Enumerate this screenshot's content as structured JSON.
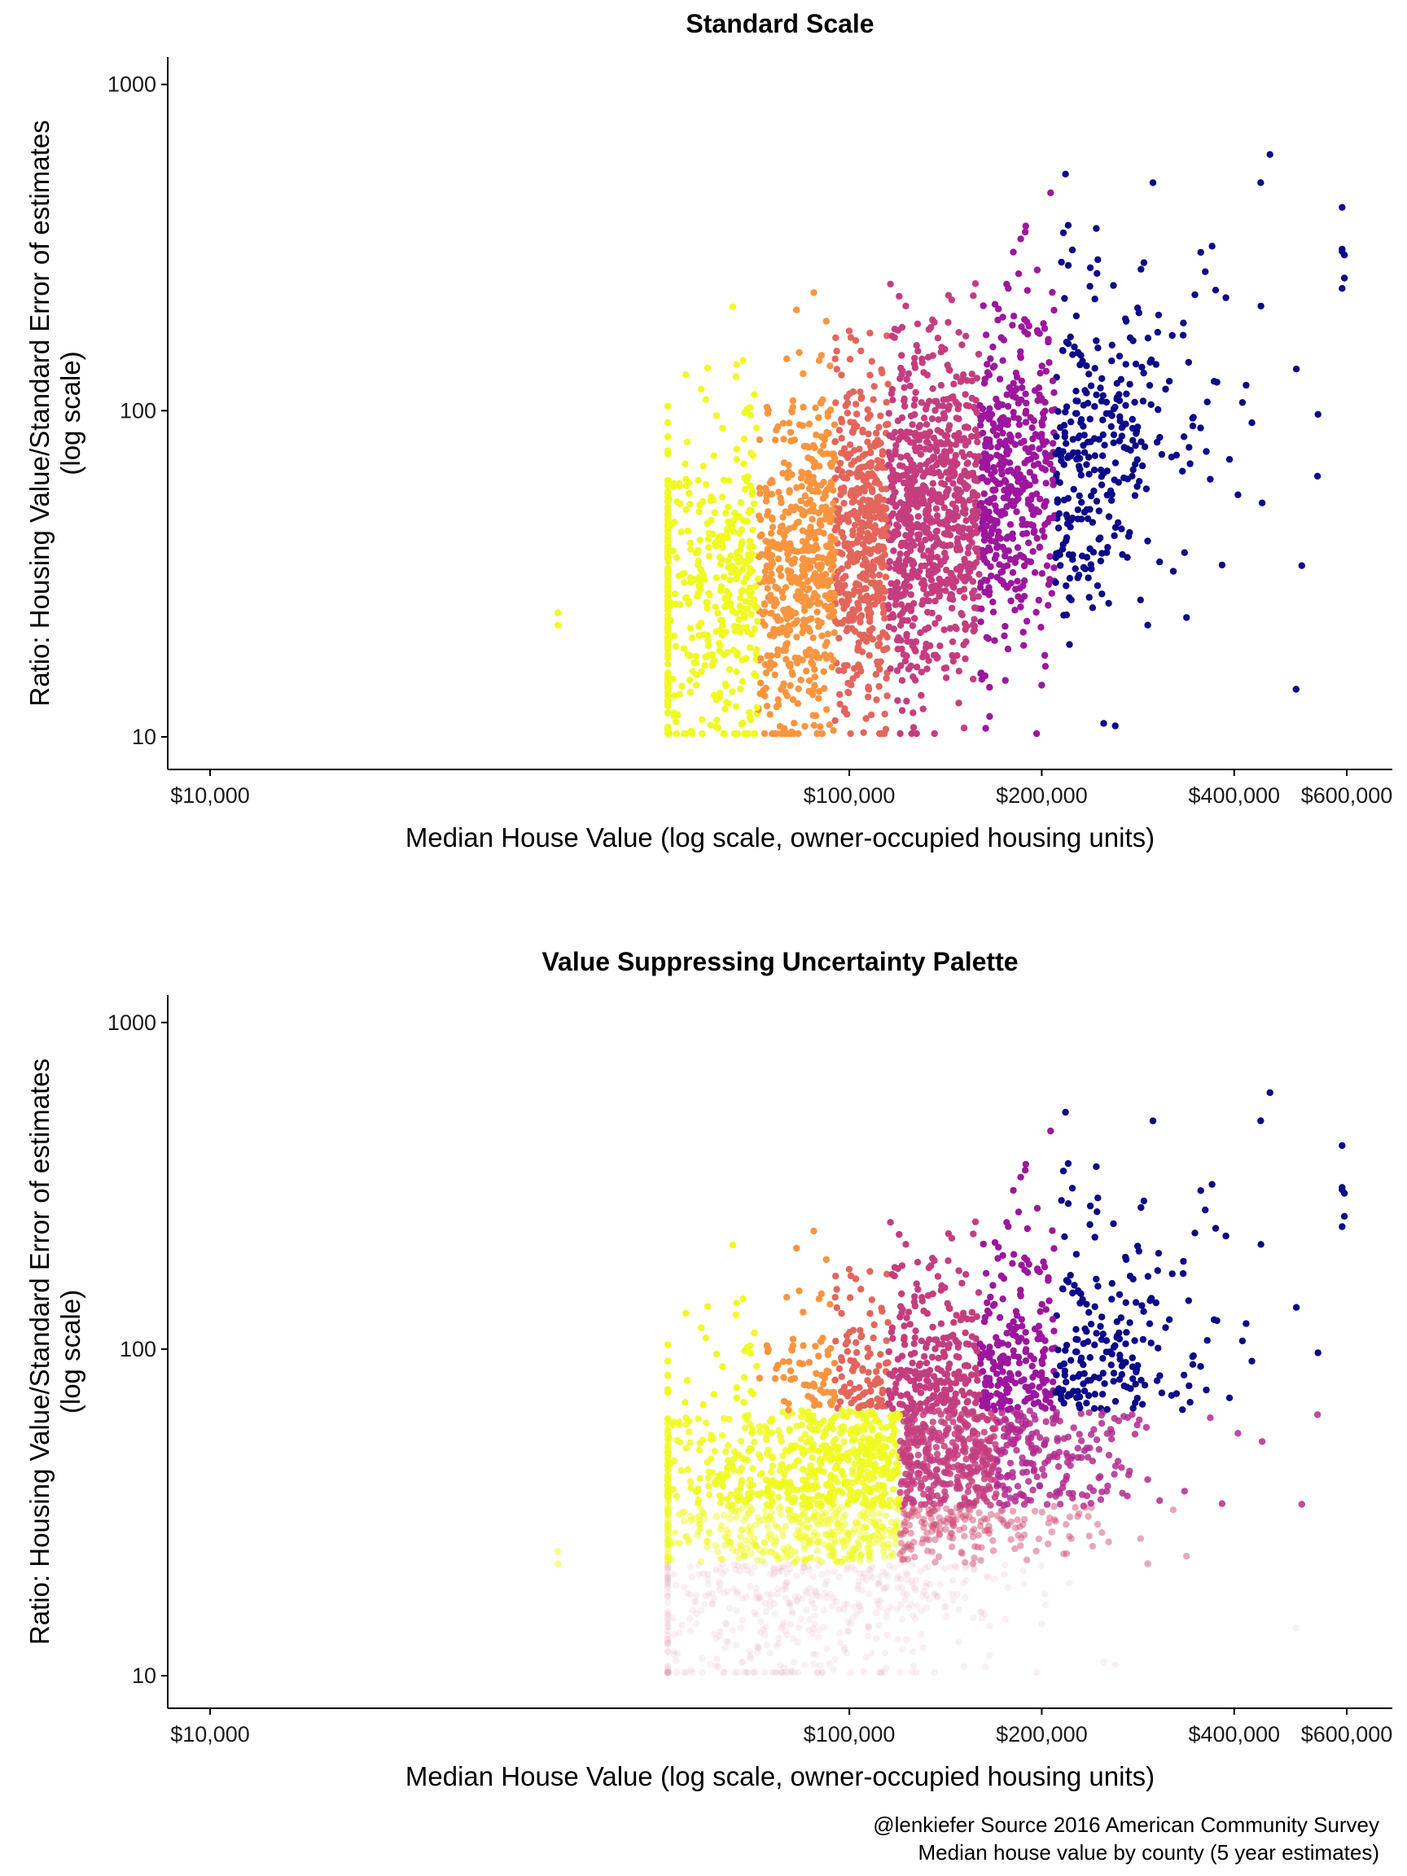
{
  "caption": {
    "line1": "@lenkiefer Source 2016 American Community Survey",
    "line2": "Median house value by county (5 year estimates)"
  },
  "colors": {
    "palette_plasma": [
      "#0d0887",
      "#6a00a8",
      "#9c179e",
      "#c43e7f",
      "#e2665c",
      "#f89540",
      "#f0f921"
    ],
    "low_certainty_tint": "#e6a6bd"
  },
  "chart_data": [
    {
      "type": "scatter",
      "title": "Standard Scale",
      "xlabel": "Median House Value (log scale, owner-occupied housing units)",
      "ylabel": [
        "Ratio: Housing Value/Standard Error of estimates",
        "(log scale)"
      ],
      "x_scale": "log",
      "y_scale": "log",
      "xlim": [
        10000,
        600000
      ],
      "ylim": [
        10,
        1200
      ],
      "x_ticks": [
        10000,
        100000,
        200000,
        400000,
        600000
      ],
      "x_tick_labels": [
        "$10,000",
        "$100,000",
        "$200,000",
        "$400,000",
        "$600,000"
      ],
      "y_ticks": [
        10,
        100,
        1000
      ],
      "y_tick_labels": [
        "10",
        "100",
        "1000"
      ],
      "grid": false,
      "color_encoding": "median house value binned (yellow = low, dark blue = high)",
      "x_bins": [
        72000,
        95000,
        115000,
        160000,
        210000
      ],
      "n_points": 3100,
      "notable_points": [
        {
          "x": 35000,
          "y": 24
        },
        {
          "x": 35000,
          "y": 22
        },
        {
          "x": 88000,
          "y": 230
        },
        {
          "x": 455000,
          "y": 610
        },
        {
          "x": 440000,
          "y": 500
        },
        {
          "x": 590000,
          "y": 420
        },
        {
          "x": 595000,
          "y": 300
        },
        {
          "x": 595000,
          "y": 255
        },
        {
          "x": 220000,
          "y": 370
        },
        {
          "x": 250000,
          "y": 11
        },
        {
          "x": 500000,
          "y": 14
        },
        {
          "x": 540000,
          "y": 63
        }
      ]
    },
    {
      "type": "scatter",
      "title": "Value Suppressing Uncertainty Palette",
      "xlabel": "Median House Value (log scale, owner-occupied housing units)",
      "ylabel": [
        "Ratio: Housing Value/Standard Error of estimates",
        "(log scale)"
      ],
      "x_scale": "log",
      "y_scale": "log",
      "xlim": [
        10000,
        600000
      ],
      "ylim": [
        10,
        1200
      ],
      "x_ticks": [
        10000,
        100000,
        200000,
        400000,
        600000
      ],
      "x_tick_labels": [
        "$10,000",
        "$100,000",
        "$200,000",
        "$400,000",
        "$600,000"
      ],
      "y_ticks": [
        10,
        100,
        1000
      ],
      "y_tick_labels": [
        "10",
        "100",
        "1000"
      ],
      "grid": false,
      "color_encoding": "value-suppressing palette: fewer value bins and lower opacity as certainty (ratio) decreases",
      "certainty_levels": [
        {
          "ratio_min": 65,
          "x_bins": [
            72000,
            95000,
            115000,
            160000,
            210000
          ],
          "opacity": 1.0
        },
        {
          "ratio_min": 33,
          "x_bins": [
            120000,
            170000
          ],
          "opacity": 0.85
        },
        {
          "ratio_min": 22,
          "x_bins": [
            120000
          ],
          "opacity": 0.5
        },
        {
          "ratio_min": 0,
          "x_bins": [],
          "opacity": 0.18
        }
      ],
      "n_points": 3100
    }
  ]
}
